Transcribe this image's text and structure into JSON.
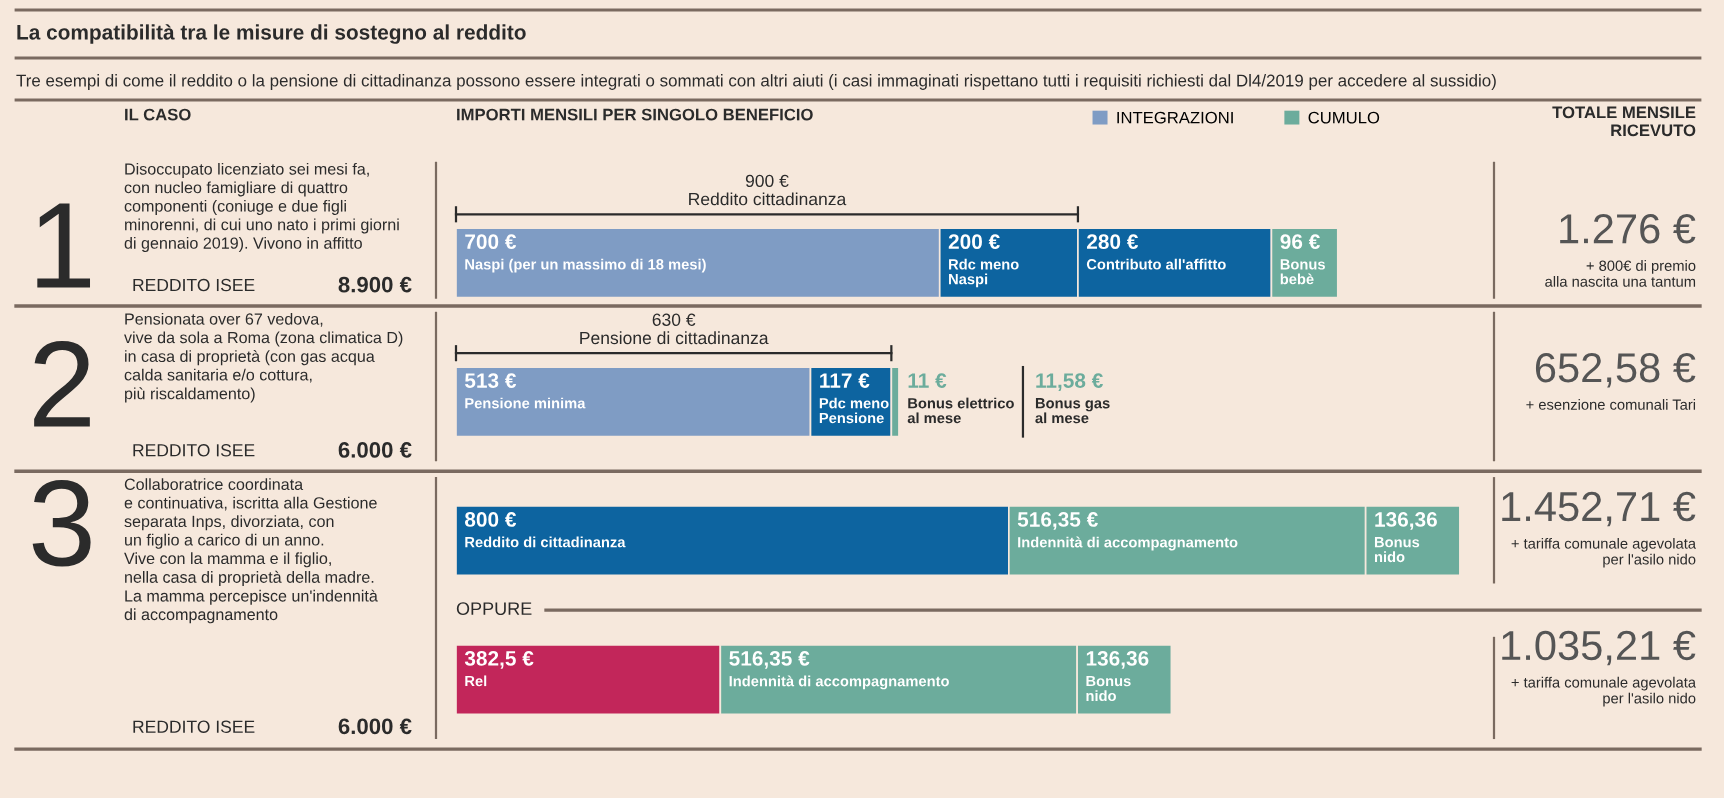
{
  "chart_data": {
    "type": "bar",
    "orientation": "horizontal",
    "stacked": true,
    "legend": "top right",
    "title": "La compatibilità tra le misure di sostegno al reddito",
    "subtitle": "Tre esempi di come il reddito o la pensione di cittadinanza possono essere integrati o sommati con altri aiuti (i casi immaginati rispettano tutti i requisiti richiesti dal Dl4/2019 per accedere al sussidio)",
    "categories": [
      "1",
      "2",
      "3",
      null
    ],
    "series": [
      {
        "name": "INTEGRAZIONI",
        "color": "#7f9cc4",
        "values": [
          700,
          513,
          null,
          null
        ],
        "value_labels": [
          "700 €\nNaspi (per un massimo di 18 mesi)",
          "513 €\nPensione minima",
          null,
          null
        ]
      },
      {
        "color": "#c2265a",
        "values": [
          null,
          null,
          null,
          382.5
        ],
        "value_labels": [
          null,
          null,
          null,
          "382,5 €\nRel"
        ]
      },
      {
        "color": "#0d64a0",
        "values": [
          200,
          117,
          800,
          null
        ],
        "value_labels": [
          "200 €\nRdc meno\nNaspi",
          "117 €\nPdc meno\nPensione",
          "800 €\nReddito di cittadinanza",
          null
        ]
      },
      {
        "color": "#0d64a0",
        "values": [
          280,
          null,
          null,
          null
        ],
        "value_labels": [
          "280 €\nContributo all'affitto",
          null,
          null,
          null
        ]
      },
      {
        "name": "CUMULO",
        "color": "#6cac9c",
        "values": [
          96,
          11,
          516.35,
          516.35
        ],
        "value_labels": [
          "96 €\nBonus\nbebè",
          "11 €\nBonus elettrico\nal mese",
          "516,35 €\nIndennità di accompagnamento",
          "516,35 €\nIndennità di accompagnamento"
        ]
      },
      {
        "color": "#6cac9c",
        "values": [
          null,
          null,
          136.36,
          136.36
        ],
        "value_labels": [
          null,
          null,
          "136,36\nBonus\nnido",
          "136,36\nBonus\nnido"
        ]
      }
    ],
    "annotations": [
      "IL CASO",
      "IMPORTI MENSILI PER SINGOLO BENEFICIO",
      "TOTALE MENSILE\nRICEVUTO",
      "Disoccupato licenziato sei mesi fa,\ncon nucleo famigliare di quattro\ncomponenti (coniuge e due figli\nminorenni, di cui uno nato i primi giorni\ndi gennaio 2019). Vivono in affitto",
      "Pensionata over 67 vedova,\nvive da sola a Roma (zona climatica D)\nin casa di proprietà (con gas acqua\ncalda sanitaria e/o cottura,\npiù riscaldamento)",
      "Collaboratrice coordinata\ne continuativa, iscritta alla Gestione\nseparata Inps, divorziata, con\nun figlio a carico di un anno.\nVive con la mamma e il figlio,\nnella casa di proprietà della madre.\nLa mamma percepisce un'indennità\ndi accompagnamento",
      "REDDITO ISEE",
      "8.900 €",
      "REDDITO ISEE",
      "6.000 €",
      "REDDITO ISEE",
      "6.000 €",
      "900 €\nReddito cittadinanza",
      "630 €\nPensione di cittadinanza",
      "11,58 €\nBonus gas\nal mese",
      "OPPURE",
      "+ 800€ di premio\nalla nascita una tantum",
      "+ esenzione comunali Tari",
      "+ tariffa comunale agevolata\nper l'asilo nido",
      "+ tariffa comunale agevolata\nper l'asilo nido",
      "1.276 €",
      "652,58 €",
      "1.452,71 €",
      "1.035,21 €"
    ]
  }
}
